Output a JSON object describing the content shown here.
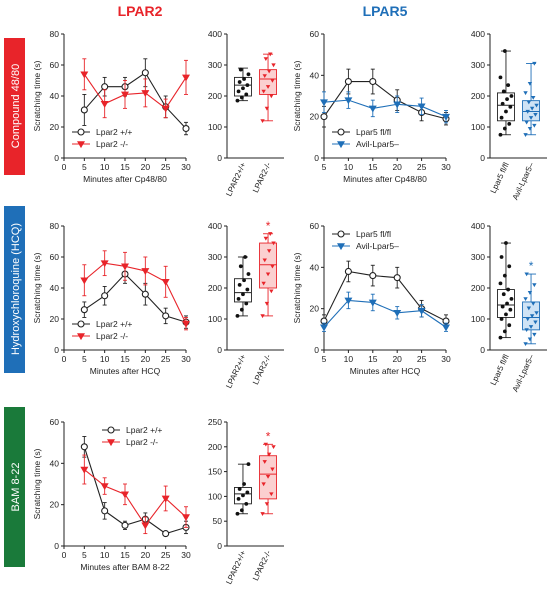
{
  "headers": {
    "lpar2": {
      "text": "LPAR2",
      "color": "#e8242a"
    },
    "lpar5": {
      "text": "LPAR5",
      "color": "#1f6fb8"
    }
  },
  "row_labels": [
    {
      "text": "Compound 48/80",
      "color": "#e8242a"
    },
    {
      "text": "Hydroxychloroquine (HCQ)",
      "color": "#1f6fb8"
    },
    {
      "text": "BAM 8-22",
      "color": "#1a7a3a"
    }
  ],
  "chart_data": [
    {
      "id": "cp-lpar2-line",
      "type": "line",
      "ylabel": "Scratching time (s)",
      "xlabel": "Minutes after Cp48/80",
      "x": [
        5,
        10,
        15,
        20,
        25,
        30
      ],
      "xlim": [
        0,
        30
      ],
      "ylim": [
        0,
        80
      ],
      "yticks": [
        0,
        20,
        40,
        60,
        80
      ],
      "xticks": [
        0,
        5,
        10,
        15,
        20,
        25,
        30
      ],
      "legend": "bottom-left",
      "series": [
        {
          "name": "Lpar2 +/+",
          "marker": "circle",
          "color": "#222222",
          "values": [
            31,
            46,
            46,
            55,
            33,
            19
          ],
          "err": [
            10,
            6,
            6,
            9,
            7,
            4
          ]
        },
        {
          "name": "Lpar2 -/-",
          "marker": "triangle",
          "color": "#e8242a",
          "values": [
            54,
            35,
            41,
            42,
            32,
            52
          ],
          "err": [
            10,
            9,
            9,
            9,
            6,
            11
          ]
        }
      ]
    },
    {
      "id": "cp-lpar2-box",
      "type": "box",
      "ylim": [
        0,
        400
      ],
      "yticks": [
        0,
        100,
        200,
        300,
        400
      ],
      "categories": [
        "LPAR2+/+",
        "LPAR2-/-"
      ],
      "boxes": [
        {
          "q1": 200,
          "median": 235,
          "q3": 260,
          "min": 185,
          "max": 290,
          "fill": "#ffffff",
          "stroke": "#222222",
          "points": [
            185,
            195,
            205,
            215,
            225,
            235,
            245,
            255,
            270,
            285
          ]
        },
        {
          "q1": 205,
          "median": 255,
          "q3": 285,
          "min": 120,
          "max": 335,
          "fill": "#fbd0d0",
          "stroke": "#e8242a",
          "points": [
            120,
            160,
            200,
            215,
            230,
            250,
            265,
            280,
            300,
            320,
            335
          ]
        }
      ]
    },
    {
      "id": "cp-lpar5-line",
      "type": "line",
      "ylabel": "Scratching time (s)",
      "xlabel": "Minutes after Cp48/80",
      "x": [
        5,
        10,
        15,
        20,
        25,
        30
      ],
      "xlim": [
        5,
        30
      ],
      "ylim": [
        0,
        60
      ],
      "yticks": [
        0,
        20,
        40,
        60
      ],
      "xticks": [
        5,
        10,
        15,
        20,
        25,
        30
      ],
      "legend": "bottom-left",
      "series": [
        {
          "name": "Lpar5 fl/fl",
          "marker": "circle",
          "color": "#222222",
          "values": [
            20,
            37,
            37,
            28,
            22,
            19
          ],
          "err": [
            5,
            6,
            6,
            5,
            4,
            3
          ]
        },
        {
          "name": "Avil-Lpar5–",
          "marker": "triangle",
          "color": "#1f6fb8",
          "values": [
            27,
            28,
            24,
            26,
            25,
            20
          ],
          "err": [
            5,
            4,
            4,
            4,
            4,
            3
          ]
        }
      ]
    },
    {
      "id": "cp-lpar5-box",
      "type": "box",
      "ylim": [
        0,
        400
      ],
      "yticks": [
        0,
        100,
        200,
        300,
        400
      ],
      "categories": [
        "Lpar5 fl/fl",
        "Avil-Lpar5–"
      ],
      "boxes": [
        {
          "q1": 120,
          "median": 170,
          "q3": 210,
          "min": 75,
          "max": 345,
          "fill": "#ffffff",
          "stroke": "#222222",
          "points": [
            75,
            95,
            110,
            130,
            150,
            165,
            175,
            190,
            200,
            215,
            235,
            260,
            345
          ]
        },
        {
          "q1": 120,
          "median": 150,
          "q3": 185,
          "min": 75,
          "max": 305,
          "fill": "#cfe3f5",
          "stroke": "#1f6fb8",
          "points": [
            75,
            95,
            105,
            115,
            130,
            140,
            150,
            160,
            170,
            180,
            195,
            210,
            240,
            305
          ]
        }
      ]
    },
    {
      "id": "hcq-lpar2-line",
      "type": "line",
      "ylabel": "Scratching time (s)",
      "xlabel": "Minutes after  HCQ",
      "x": [
        5,
        10,
        15,
        20,
        25,
        30
      ],
      "xlim": [
        0,
        30
      ],
      "ylim": [
        0,
        80
      ],
      "yticks": [
        0,
        20,
        40,
        60,
        80
      ],
      "xticks": [
        0,
        5,
        10,
        15,
        20,
        25,
        30
      ],
      "legend": "bottom-left",
      "series": [
        {
          "name": "Lpar2 +/+",
          "marker": "circle",
          "color": "#222222",
          "values": [
            26,
            35,
            49,
            36,
            22,
            18
          ],
          "err": [
            5,
            6,
            6,
            7,
            5,
            4
          ]
        },
        {
          "name": "Lpar2 -/-",
          "marker": "triangle",
          "color": "#e8242a",
          "values": [
            45,
            56,
            54,
            51,
            44,
            17
          ],
          "err": [
            10,
            8,
            9,
            9,
            10,
            4
          ]
        }
      ]
    },
    {
      "id": "hcq-lpar2-box",
      "type": "box",
      "ylim": [
        0,
        400
      ],
      "yticks": [
        0,
        100,
        200,
        300,
        400
      ],
      "categories": [
        "LPAR2+/+",
        "LPAR2-/-"
      ],
      "significance": "*",
      "boxes": [
        {
          "q1": 155,
          "median": 185,
          "q3": 230,
          "min": 110,
          "max": 300,
          "fill": "#ffffff",
          "stroke": "#222222",
          "points": [
            110,
            130,
            150,
            165,
            180,
            195,
            210,
            225,
            245,
            270,
            300
          ]
        },
        {
          "q1": 200,
          "median": 275,
          "q3": 345,
          "min": 110,
          "max": 375,
          "fill": "#fbd0d0",
          "stroke": "#e8242a",
          "points": [
            110,
            150,
            190,
            215,
            245,
            270,
            290,
            320,
            345,
            360,
            375
          ]
        }
      ]
    },
    {
      "id": "hcq-lpar5-line",
      "type": "line",
      "ylabel": "Scratching time (s)",
      "xlabel": "Minutes after HCQ",
      "x": [
        5,
        10,
        15,
        20,
        25,
        30
      ],
      "xlim": [
        5,
        30
      ],
      "ylim": [
        0,
        60
      ],
      "yticks": [
        0,
        20,
        40,
        60
      ],
      "xticks": [
        5,
        10,
        15,
        20,
        25,
        30
      ],
      "legend": "top-left",
      "series": [
        {
          "name": "Lpar5 fl/fl",
          "marker": "circle",
          "color": "#222222",
          "values": [
            14,
            38,
            36,
            35,
            20,
            14
          ],
          "err": [
            3,
            5,
            5,
            5,
            4,
            3
          ]
        },
        {
          "name": "Avil-Lpar5–",
          "marker": "triangle",
          "color": "#1f6fb8",
          "values": [
            11,
            24,
            23,
            18,
            19,
            11
          ],
          "err": [
            2,
            4,
            4,
            3,
            3,
            2
          ]
        }
      ]
    },
    {
      "id": "hcq-lpar5-box",
      "type": "box",
      "ylim": [
        0,
        400
      ],
      "yticks": [
        0,
        100,
        200,
        300,
        400
      ],
      "categories": [
        "Lpar5 fl/fl",
        "Avil-Lpar5–"
      ],
      "significance": "*",
      "boxes": [
        {
          "q1": 105,
          "median": 145,
          "q3": 195,
          "min": 40,
          "max": 345,
          "fill": "#ffffff",
          "stroke": "#222222",
          "points": [
            40,
            60,
            80,
            100,
            115,
            130,
            140,
            150,
            165,
            180,
            195,
            215,
            240,
            270,
            300,
            345
          ]
        },
        {
          "q1": 65,
          "median": 105,
          "q3": 155,
          "min": 20,
          "max": 245,
          "fill": "#cfe3f5",
          "stroke": "#1f6fb8",
          "points": [
            20,
            35,
            50,
            65,
            75,
            90,
            100,
            110,
            120,
            135,
            150,
            165,
            185,
            210,
            245
          ]
        }
      ]
    },
    {
      "id": "bam-lpar2-line",
      "type": "line",
      "ylabel": "Scratching time (s)",
      "xlabel": "Minutes after BAM 8-22",
      "x": [
        5,
        10,
        15,
        20,
        25,
        30
      ],
      "xlim": [
        0,
        30
      ],
      "ylim": [
        0,
        60
      ],
      "yticks": [
        0,
        20,
        40,
        60
      ],
      "xticks": [
        0,
        5,
        10,
        15,
        20,
        25,
        30
      ],
      "legend": "top-right",
      "series": [
        {
          "name": "Lpar2 +/+",
          "marker": "circle",
          "color": "#222222",
          "values": [
            48,
            17,
            10,
            13,
            6,
            9
          ],
          "err": [
            5,
            4,
            2,
            3,
            1,
            3
          ]
        },
        {
          "name": "Lpar2 -/-",
          "marker": "triangle",
          "color": "#e8242a",
          "values": [
            37,
            29,
            25,
            10,
            23,
            14
          ],
          "err": [
            7,
            4,
            5,
            4,
            6,
            5
          ]
        }
      ]
    },
    {
      "id": "bam-lpar2-box",
      "type": "box",
      "ylim": [
        0,
        250
      ],
      "yticks": [
        0,
        50,
        100,
        150,
        200,
        250
      ],
      "categories": [
        "LPAR2+/+",
        "LPAR2-/-"
      ],
      "significance": "*",
      "boxes": [
        {
          "q1": 85,
          "median": 105,
          "q3": 118,
          "min": 65,
          "max": 165,
          "fill": "#ffffff",
          "stroke": "#222222",
          "points": [
            65,
            72,
            85,
            95,
            102,
            108,
            115,
            125,
            165
          ]
        },
        {
          "q1": 95,
          "median": 145,
          "q3": 182,
          "min": 65,
          "max": 205,
          "fill": "#fbd0d0",
          "stroke": "#e8242a",
          "points": [
            65,
            85,
            105,
            125,
            140,
            155,
            170,
            185,
            200,
            205
          ]
        }
      ]
    }
  ]
}
